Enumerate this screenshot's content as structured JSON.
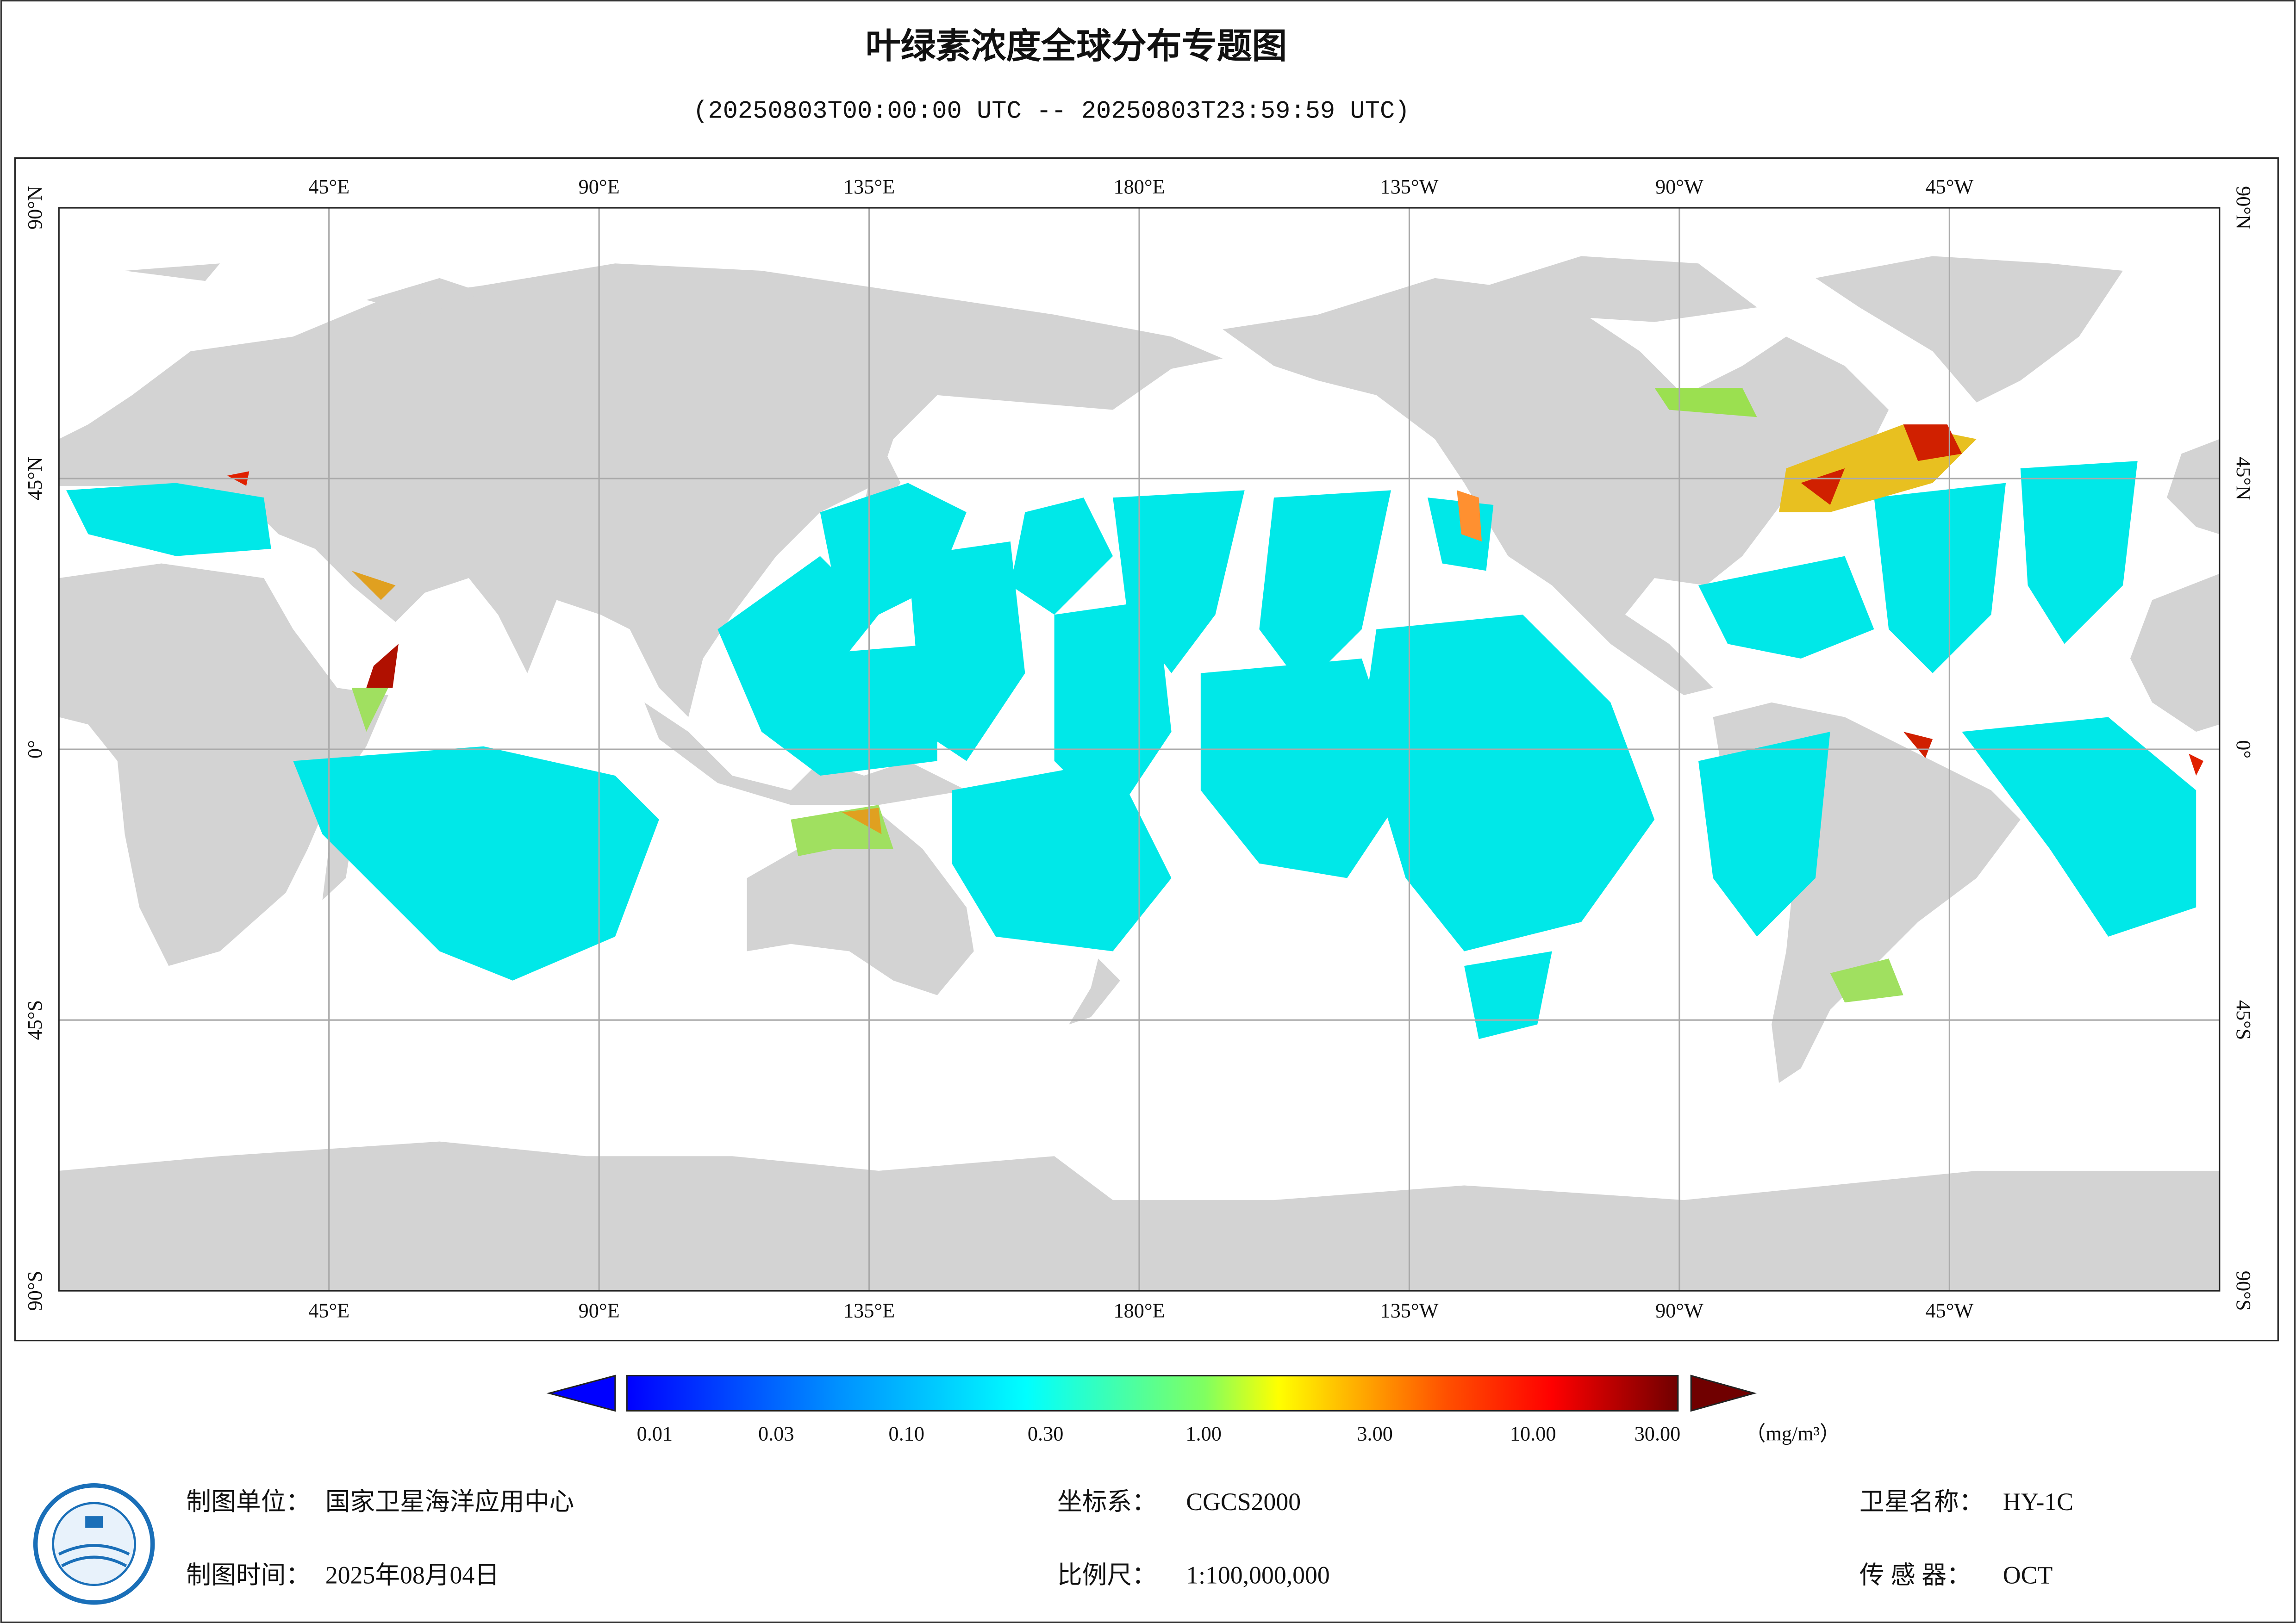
{
  "header": {
    "title": "叶绿素浓度全球分布专题图",
    "subtitle": "(20250803T00:00:00 UTC -- 20250803T23:59:59 UTC)"
  },
  "map": {
    "lon_labels": [
      "45°E",
      "90°E",
      "135°E",
      "180°E",
      "135°W",
      "90°W",
      "45°W"
    ],
    "lat_labels": [
      "90°N",
      "45°N",
      "0°",
      "45°S",
      "90°S"
    ]
  },
  "colorbar": {
    "labels": [
      "0.01",
      "0.03",
      "0.10",
      "0.30",
      "1.00",
      "3.00",
      "10.00",
      "30.00"
    ],
    "unit": "（mg/m³）"
  },
  "footer": {
    "unit_label": "制图单位：",
    "unit": "国家卫星海洋应用中心",
    "time_label": "制图时间：",
    "time": "2025年08月04日",
    "crs_label": "坐标系：",
    "crs": "CGCS2000",
    "scale_label": "比例尺：",
    "scale": "1:100,000,000",
    "satellite_label": "卫星名称：",
    "satellite": "HY-1C",
    "sensor_label": "传 感 器：",
    "sensor": "OCT"
  }
}
